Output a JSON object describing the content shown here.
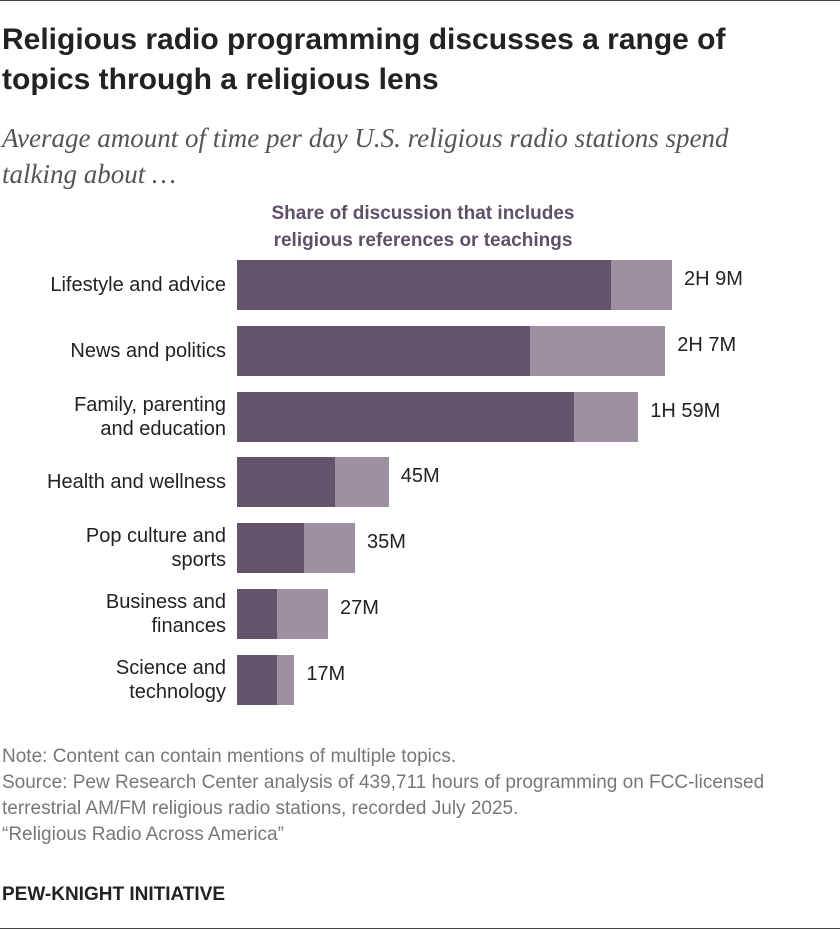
{
  "chart_data": {
    "type": "stacked-bar-horizontal",
    "title": "Religious radio programming discusses a range of topics through a religious lens",
    "subtitle": "Average amount of time per day U.S. religious radio stations spend talking about …",
    "categories": [
      "Lifestyle and advice",
      "News and politics",
      "Family, parenting\nand education",
      "Health and wellness",
      "Pop culture and\nsports",
      "Business and\nfinances",
      "Science and\ntechnology"
    ],
    "series": [
      {
        "name": "Share of discussion that includes religious references or teachings",
        "color": "#63536b",
        "values": [
          111,
          87,
          100,
          29,
          20,
          12,
          12
        ]
      },
      {
        "color": "#9d90a0",
        "values": [
          18,
          40,
          19,
          16,
          15,
          15,
          5
        ]
      }
    ],
    "totals": {
      "values": [
        129,
        127,
        119,
        45,
        35,
        27,
        17
      ],
      "value_labels": [
        "2H 9M",
        "2H 7M",
        "1H 59M",
        "45M",
        "35M",
        "27M",
        "17M"
      ]
    },
    "note": "Note: Content can contain mentions of multiple topics.",
    "source": "Source: Pew Research Center analysis of 439,711 hours of programming on FCC-licensed terrestrial AM/FM religious radio stations, recorded July 2025.",
    "report": "“Religious Radio Across America”",
    "footer": "PEW-KNIGHT INITIATIVE"
  }
}
